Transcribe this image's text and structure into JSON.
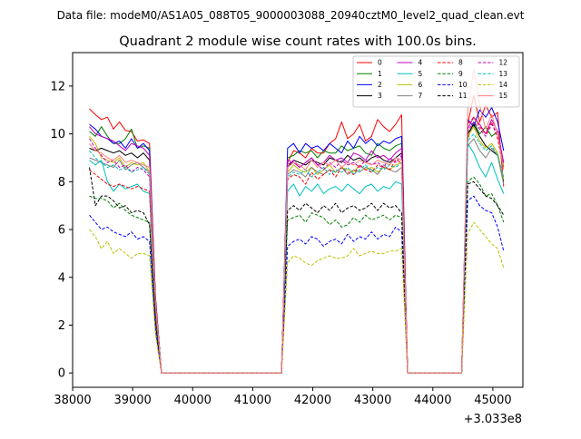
{
  "chart_data": {
    "type": "line",
    "suptitle": "Data file: modeM0/AS1A05_088T05_9000003088_20940cztM0_level2_quad_clean.evt",
    "title": "Quadrant 2 module wise count rates with 100.0s bins.",
    "xlabel": "",
    "ylabel": "",
    "x_offset_label": "+3.033e8",
    "xlim": [
      38000,
      45500
    ],
    "ylim": [
      -0.6,
      13.4
    ],
    "x_ticks": [
      38000,
      39000,
      40000,
      41000,
      42000,
      43000,
      44000,
      45000
    ],
    "y_ticks": [
      0,
      2,
      4,
      6,
      8,
      10,
      12
    ],
    "x": [
      38280,
      38380,
      38480,
      38580,
      38680,
      38780,
      38880,
      38980,
      39080,
      39180,
      39280,
      39380,
      39480,
      39580,
      39680,
      39780,
      39880,
      39980,
      40080,
      40180,
      40280,
      40380,
      40480,
      40580,
      40680,
      40780,
      40880,
      40980,
      41080,
      41180,
      41280,
      41380,
      41480,
      41580,
      41680,
      41780,
      41880,
      41980,
      42080,
      42180,
      42280,
      42380,
      42480,
      42580,
      42680,
      42780,
      42880,
      42980,
      43080,
      43180,
      43280,
      43380,
      43480,
      43580,
      43680,
      43780,
      43880,
      43980,
      44080,
      44180,
      44280,
      44380,
      44480,
      44580,
      44680,
      44780,
      44880,
      44980,
      45080,
      45180
    ],
    "series": [
      {
        "name": "0",
        "color": "#ff0000",
        "dash": "solid",
        "values": [
          11.05,
          10.8,
          10.6,
          10.7,
          10.2,
          10.5,
          10.15,
          10.1,
          9.7,
          9.75,
          9.6,
          3.2,
          0,
          0,
          0,
          0,
          0,
          0,
          0,
          0,
          0,
          0,
          0,
          0,
          0,
          0,
          0,
          0,
          0,
          0,
          0,
          0,
          0,
          8.8,
          9.3,
          9.2,
          9.0,
          9.4,
          9.2,
          9.2,
          9.6,
          9.8,
          10.5,
          9.8,
          10.0,
          10.4,
          9.7,
          9.9,
          10.6,
          10.3,
          10.1,
          10.4,
          10.8,
          0,
          0,
          0,
          0,
          0,
          0,
          0,
          0,
          0,
          0,
          10.4,
          11.6,
          10.5,
          11.2,
          10.7,
          10.9,
          7.8
        ]
      },
      {
        "name": "1",
        "color": "#008000",
        "dash": "solid",
        "values": [
          10.1,
          9.9,
          10.3,
          9.9,
          9.6,
          9.6,
          9.8,
          10.2,
          9.4,
          9.5,
          9.4,
          3.1,
          0,
          0,
          0,
          0,
          0,
          0,
          0,
          0,
          0,
          0,
          0,
          0,
          0,
          0,
          0,
          0,
          0,
          0,
          0,
          0,
          0,
          9.0,
          9.1,
          9.3,
          9.2,
          9.3,
          9.0,
          9.3,
          9.2,
          9.2,
          9.5,
          9.3,
          9.4,
          9.5,
          9.2,
          9.1,
          9.6,
          9.4,
          9.3,
          9.5,
          9.6,
          0,
          0,
          0,
          0,
          0,
          0,
          0,
          0,
          0,
          0,
          9.8,
          10.5,
          10.0,
          10.3,
          9.9,
          10.1,
          8.6
        ]
      },
      {
        "name": "2",
        "color": "#0000ff",
        "dash": "solid",
        "values": [
          10.4,
          10.2,
          9.9,
          9.8,
          9.6,
          9.7,
          9.4,
          9.8,
          9.4,
          9.6,
          9.3,
          3.1,
          0,
          0,
          0,
          0,
          0,
          0,
          0,
          0,
          0,
          0,
          0,
          0,
          0,
          0,
          0,
          0,
          0,
          0,
          0,
          0,
          0,
          9.4,
          9.6,
          9.2,
          9.6,
          9.4,
          9.5,
          9.3,
          9.6,
          9.4,
          9.2,
          9.7,
          9.4,
          9.9,
          9.6,
          9.8,
          9.5,
          9.7,
          9.6,
          9.8,
          9.9,
          0,
          0,
          0,
          0,
          0,
          0,
          0,
          0,
          0,
          0,
          10.6,
          10.3,
          11.0,
          10.7,
          11.1,
          10.5,
          9.3
        ]
      },
      {
        "name": "3",
        "color": "#000000",
        "dash": "solid",
        "values": [
          9.4,
          9.3,
          9.4,
          9.3,
          9.2,
          9.3,
          9.1,
          9.2,
          9.0,
          9.2,
          8.9,
          3.0,
          0,
          0,
          0,
          0,
          0,
          0,
          0,
          0,
          0,
          0,
          0,
          0,
          0,
          0,
          0,
          0,
          0,
          0,
          0,
          0,
          0,
          8.6,
          8.9,
          8.8,
          8.7,
          8.9,
          8.8,
          8.7,
          9.0,
          8.9,
          8.8,
          9.1,
          8.9,
          9.0,
          8.8,
          9.0,
          9.1,
          8.9,
          8.8,
          9.0,
          9.2,
          0,
          0,
          0,
          0,
          0,
          0,
          0,
          0,
          0,
          0,
          10.0,
          10.4,
          9.9,
          9.5,
          9.3,
          9.1,
          8.0
        ]
      },
      {
        "name": "4",
        "color": "#bf00bf",
        "dash": "solid",
        "values": [
          10.3,
          10.0,
          9.9,
          9.8,
          9.7,
          9.5,
          9.3,
          9.6,
          9.5,
          9.4,
          9.1,
          3.0,
          0,
          0,
          0,
          0,
          0,
          0,
          0,
          0,
          0,
          0,
          0,
          0,
          0,
          0,
          0,
          0,
          0,
          0,
          0,
          0,
          0,
          8.9,
          8.8,
          8.6,
          8.8,
          9.0,
          8.7,
          8.8,
          9.1,
          8.9,
          9.0,
          8.8,
          9.2,
          9.1,
          8.9,
          9.3,
          9.0,
          9.1,
          8.9,
          9.2,
          9.4,
          0,
          0,
          0,
          0,
          0,
          0,
          0,
          0,
          0,
          0,
          10.2,
          10.7,
          10.4,
          10.0,
          10.6,
          10.1,
          8.8
        ]
      },
      {
        "name": "5",
        "color": "#00bfbf",
        "dash": "solid",
        "values": [
          8.9,
          8.7,
          8.9,
          8.0,
          7.6,
          7.9,
          7.7,
          7.8,
          7.9,
          7.6,
          7.5,
          2.5,
          0,
          0,
          0,
          0,
          0,
          0,
          0,
          0,
          0,
          0,
          0,
          0,
          0,
          0,
          0,
          0,
          0,
          0,
          0,
          0,
          0,
          7.6,
          7.9,
          7.4,
          7.8,
          7.6,
          7.9,
          7.5,
          7.7,
          7.8,
          7.6,
          7.9,
          7.7,
          7.5,
          7.8,
          7.9,
          7.6,
          7.8,
          7.7,
          8.0,
          7.9,
          0,
          0,
          0,
          0,
          0,
          0,
          0,
          0,
          0,
          0,
          9.6,
          9.2,
          8.6,
          8.2,
          8.8,
          8.1,
          7.5
        ]
      },
      {
        "name": "6",
        "color": "#bfbf00",
        "dash": "solid",
        "values": [
          9.9,
          9.6,
          9.0,
          8.9,
          8.8,
          9.0,
          8.6,
          8.8,
          8.7,
          8.8,
          8.4,
          2.8,
          0,
          0,
          0,
          0,
          0,
          0,
          0,
          0,
          0,
          0,
          0,
          0,
          0,
          0,
          0,
          0,
          0,
          0,
          0,
          0,
          0,
          8.4,
          8.7,
          8.5,
          8.4,
          8.6,
          8.3,
          8.5,
          8.7,
          8.4,
          8.6,
          8.5,
          8.4,
          8.7,
          8.5,
          8.6,
          8.4,
          8.6,
          8.5,
          8.7,
          8.8,
          0,
          0,
          0,
          0,
          0,
          0,
          0,
          0,
          0,
          0,
          9.9,
          10.3,
          9.7,
          9.4,
          9.6,
          9.2,
          8.1
        ]
      },
      {
        "name": "7",
        "color": "#808080",
        "dash": "solid",
        "values": [
          9.0,
          8.9,
          8.8,
          8.7,
          8.6,
          8.9,
          8.5,
          8.7,
          8.8,
          8.6,
          8.4,
          2.8,
          0,
          0,
          0,
          0,
          0,
          0,
          0,
          0,
          0,
          0,
          0,
          0,
          0,
          0,
          0,
          0,
          0,
          0,
          0,
          0,
          0,
          8.3,
          8.5,
          8.4,
          8.2,
          8.6,
          8.4,
          8.3,
          8.5,
          8.4,
          8.6,
          8.3,
          8.5,
          8.4,
          8.6,
          8.5,
          8.3,
          8.7,
          8.5,
          8.4,
          8.6,
          0,
          0,
          0,
          0,
          0,
          0,
          0,
          0,
          0,
          0,
          9.5,
          9.8,
          9.3,
          9.0,
          9.4,
          9.1,
          7.9
        ]
      },
      {
        "name": "8",
        "color": "#ff0000",
        "dash": "dashed",
        "values": [
          8.5,
          8.3,
          8.1,
          7.9,
          7.8,
          7.9,
          7.8,
          7.7,
          7.8,
          7.7,
          7.6,
          2.5,
          0,
          0,
          0,
          0,
          0,
          0,
          0,
          0,
          0,
          0,
          0,
          0,
          0,
          0,
          0,
          0,
          0,
          0,
          0,
          0,
          0,
          8.1,
          8.3,
          8.2,
          7.9,
          8.4,
          8.1,
          8.3,
          8.5,
          8.2,
          8.6,
          8.4,
          8.3,
          8.7,
          8.5,
          8.4,
          8.7,
          8.6,
          8.5,
          8.9,
          8.8,
          0,
          0,
          0,
          0,
          0,
          0,
          0,
          0,
          0,
          0,
          10.4,
          10.7,
          10.3,
          10.0,
          10.5,
          9.8,
          8.5
        ]
      },
      {
        "name": "9",
        "color": "#008000",
        "dash": "dashed",
        "values": [
          7.4,
          7.3,
          7.3,
          7.2,
          6.9,
          7.1,
          6.8,
          6.6,
          6.5,
          6.4,
          6.3,
          2.1,
          0,
          0,
          0,
          0,
          0,
          0,
          0,
          0,
          0,
          0,
          0,
          0,
          0,
          0,
          0,
          0,
          0,
          0,
          0,
          0,
          0,
          6.4,
          6.5,
          6.6,
          6.3,
          6.7,
          6.6,
          6.5,
          6.2,
          6.4,
          6.1,
          6.2,
          6.5,
          6.3,
          6.6,
          6.4,
          6.5,
          6.6,
          6.4,
          6.6,
          6.5,
          0,
          0,
          0,
          0,
          0,
          0,
          0,
          0,
          0,
          0,
          8.0,
          8.2,
          7.9,
          7.4,
          7.5,
          7.0,
          6.3
        ]
      },
      {
        "name": "10",
        "color": "#0000ff",
        "dash": "dashed",
        "values": [
          6.6,
          6.3,
          6.0,
          6.1,
          5.9,
          5.8,
          5.7,
          5.9,
          5.6,
          5.7,
          5.5,
          1.8,
          0,
          0,
          0,
          0,
          0,
          0,
          0,
          0,
          0,
          0,
          0,
          0,
          0,
          0,
          0,
          0,
          0,
          0,
          0,
          0,
          0,
          5.3,
          5.5,
          5.6,
          5.4,
          5.7,
          5.6,
          5.3,
          5.5,
          5.6,
          5.4,
          5.8,
          5.5,
          5.7,
          5.6,
          5.9,
          5.6,
          5.8,
          5.7,
          6.1,
          5.9,
          0,
          0,
          0,
          0,
          0,
          0,
          0,
          0,
          0,
          0,
          7.2,
          7.4,
          7.0,
          6.8,
          6.7,
          6.1,
          5.1
        ]
      },
      {
        "name": "11",
        "color": "#000000",
        "dash": "dashed",
        "values": [
          8.6,
          7.0,
          7.4,
          7.4,
          7.2,
          6.9,
          7.0,
          6.7,
          6.8,
          6.7,
          6.2,
          2.1,
          0,
          0,
          0,
          0,
          0,
          0,
          0,
          0,
          0,
          0,
          0,
          0,
          0,
          0,
          0,
          0,
          0,
          0,
          0,
          0,
          0,
          6.8,
          7.0,
          6.8,
          7.1,
          6.9,
          6.7,
          7.0,
          6.8,
          7.1,
          6.7,
          6.9,
          7.0,
          6.8,
          6.9,
          7.1,
          6.8,
          7.1,
          6.9,
          7.0,
          6.7,
          0,
          0,
          0,
          0,
          0,
          0,
          0,
          0,
          0,
          0,
          7.9,
          8.0,
          7.7,
          7.4,
          7.3,
          7.0,
          6.6
        ]
      },
      {
        "name": "12",
        "color": "#bf00bf",
        "dash": "dashed",
        "values": [
          9.8,
          9.4,
          9.1,
          8.8,
          8.9,
          8.6,
          8.7,
          8.4,
          8.6,
          8.5,
          8.2,
          2.7,
          0,
          0,
          0,
          0,
          0,
          0,
          0,
          0,
          0,
          0,
          0,
          0,
          0,
          0,
          0,
          0,
          0,
          0,
          0,
          0,
          0,
          8.7,
          8.9,
          8.6,
          8.8,
          9.0,
          8.7,
          8.5,
          8.8,
          8.6,
          8.9,
          8.7,
          8.8,
          8.6,
          8.9,
          8.7,
          8.8,
          8.6,
          9.0,
          8.8,
          9.1,
          0,
          0,
          0,
          0,
          0,
          0,
          0,
          0,
          0,
          0,
          10.1,
          10.5,
          10.2,
          9.9,
          10.4,
          10.0,
          8.8
        ]
      },
      {
        "name": "13",
        "color": "#00bfbf",
        "dash": "dashed",
        "values": [
          9.3,
          9.0,
          8.8,
          8.6,
          8.7,
          8.5,
          8.6,
          8.4,
          8.5,
          8.6,
          8.3,
          2.8,
          0,
          0,
          0,
          0,
          0,
          0,
          0,
          0,
          0,
          0,
          0,
          0,
          0,
          0,
          0,
          0,
          0,
          0,
          0,
          0,
          0,
          8.2,
          8.4,
          8.3,
          8.5,
          8.2,
          8.4,
          8.6,
          8.3,
          8.5,
          8.4,
          8.6,
          8.3,
          8.5,
          8.7,
          8.4,
          8.6,
          8.5,
          8.7,
          8.6,
          8.8,
          0,
          0,
          0,
          0,
          0,
          0,
          0,
          0,
          0,
          0,
          9.7,
          10.0,
          9.6,
          9.3,
          9.5,
          9.1,
          8.2
        ]
      },
      {
        "name": "14",
        "color": "#bfbf00",
        "dash": "dashed",
        "values": [
          6.0,
          5.7,
          5.2,
          5.5,
          5.0,
          5.2,
          5.0,
          4.8,
          5.0,
          5.0,
          4.9,
          1.6,
          0,
          0,
          0,
          0,
          0,
          0,
          0,
          0,
          0,
          0,
          0,
          0,
          0,
          0,
          0,
          0,
          0,
          0,
          0,
          0,
          0,
          4.6,
          4.9,
          4.8,
          4.6,
          4.5,
          4.7,
          4.8,
          4.9,
          4.8,
          4.8,
          4.9,
          5.2,
          4.9,
          5.0,
          5.1,
          5.0,
          5.0,
          5.1,
          5.1,
          5.2,
          0,
          0,
          0,
          0,
          0,
          0,
          0,
          0,
          0,
          0,
          5.8,
          6.3,
          6.0,
          5.7,
          5.4,
          5.2,
          4.4
        ]
      },
      {
        "name": "15",
        "color": "#ff8080",
        "dash": "solid",
        "values": [
          9.6,
          9.3,
          9.2,
          9.0,
          8.9,
          9.1,
          8.8,
          8.9,
          8.8,
          8.7,
          8.6,
          2.9,
          0,
          0,
          0,
          0,
          0,
          0,
          0,
          0,
          0,
          0,
          0,
          0,
          0,
          0,
          0,
          0,
          0,
          0,
          0,
          0,
          0,
          8.6,
          8.8,
          8.7,
          8.5,
          8.9,
          8.6,
          8.8,
          8.7,
          8.9,
          8.6,
          8.8,
          8.7,
          8.9,
          8.8,
          8.7,
          8.9,
          8.8,
          8.7,
          9.0,
          8.9,
          0,
          0,
          0,
          0,
          0,
          0,
          0,
          0,
          0,
          0,
          11.0,
          12.7,
          11.2,
          10.2,
          10.8,
          10.0,
          8.5
        ]
      }
    ],
    "legend_location": "top-right",
    "grid": false
  }
}
